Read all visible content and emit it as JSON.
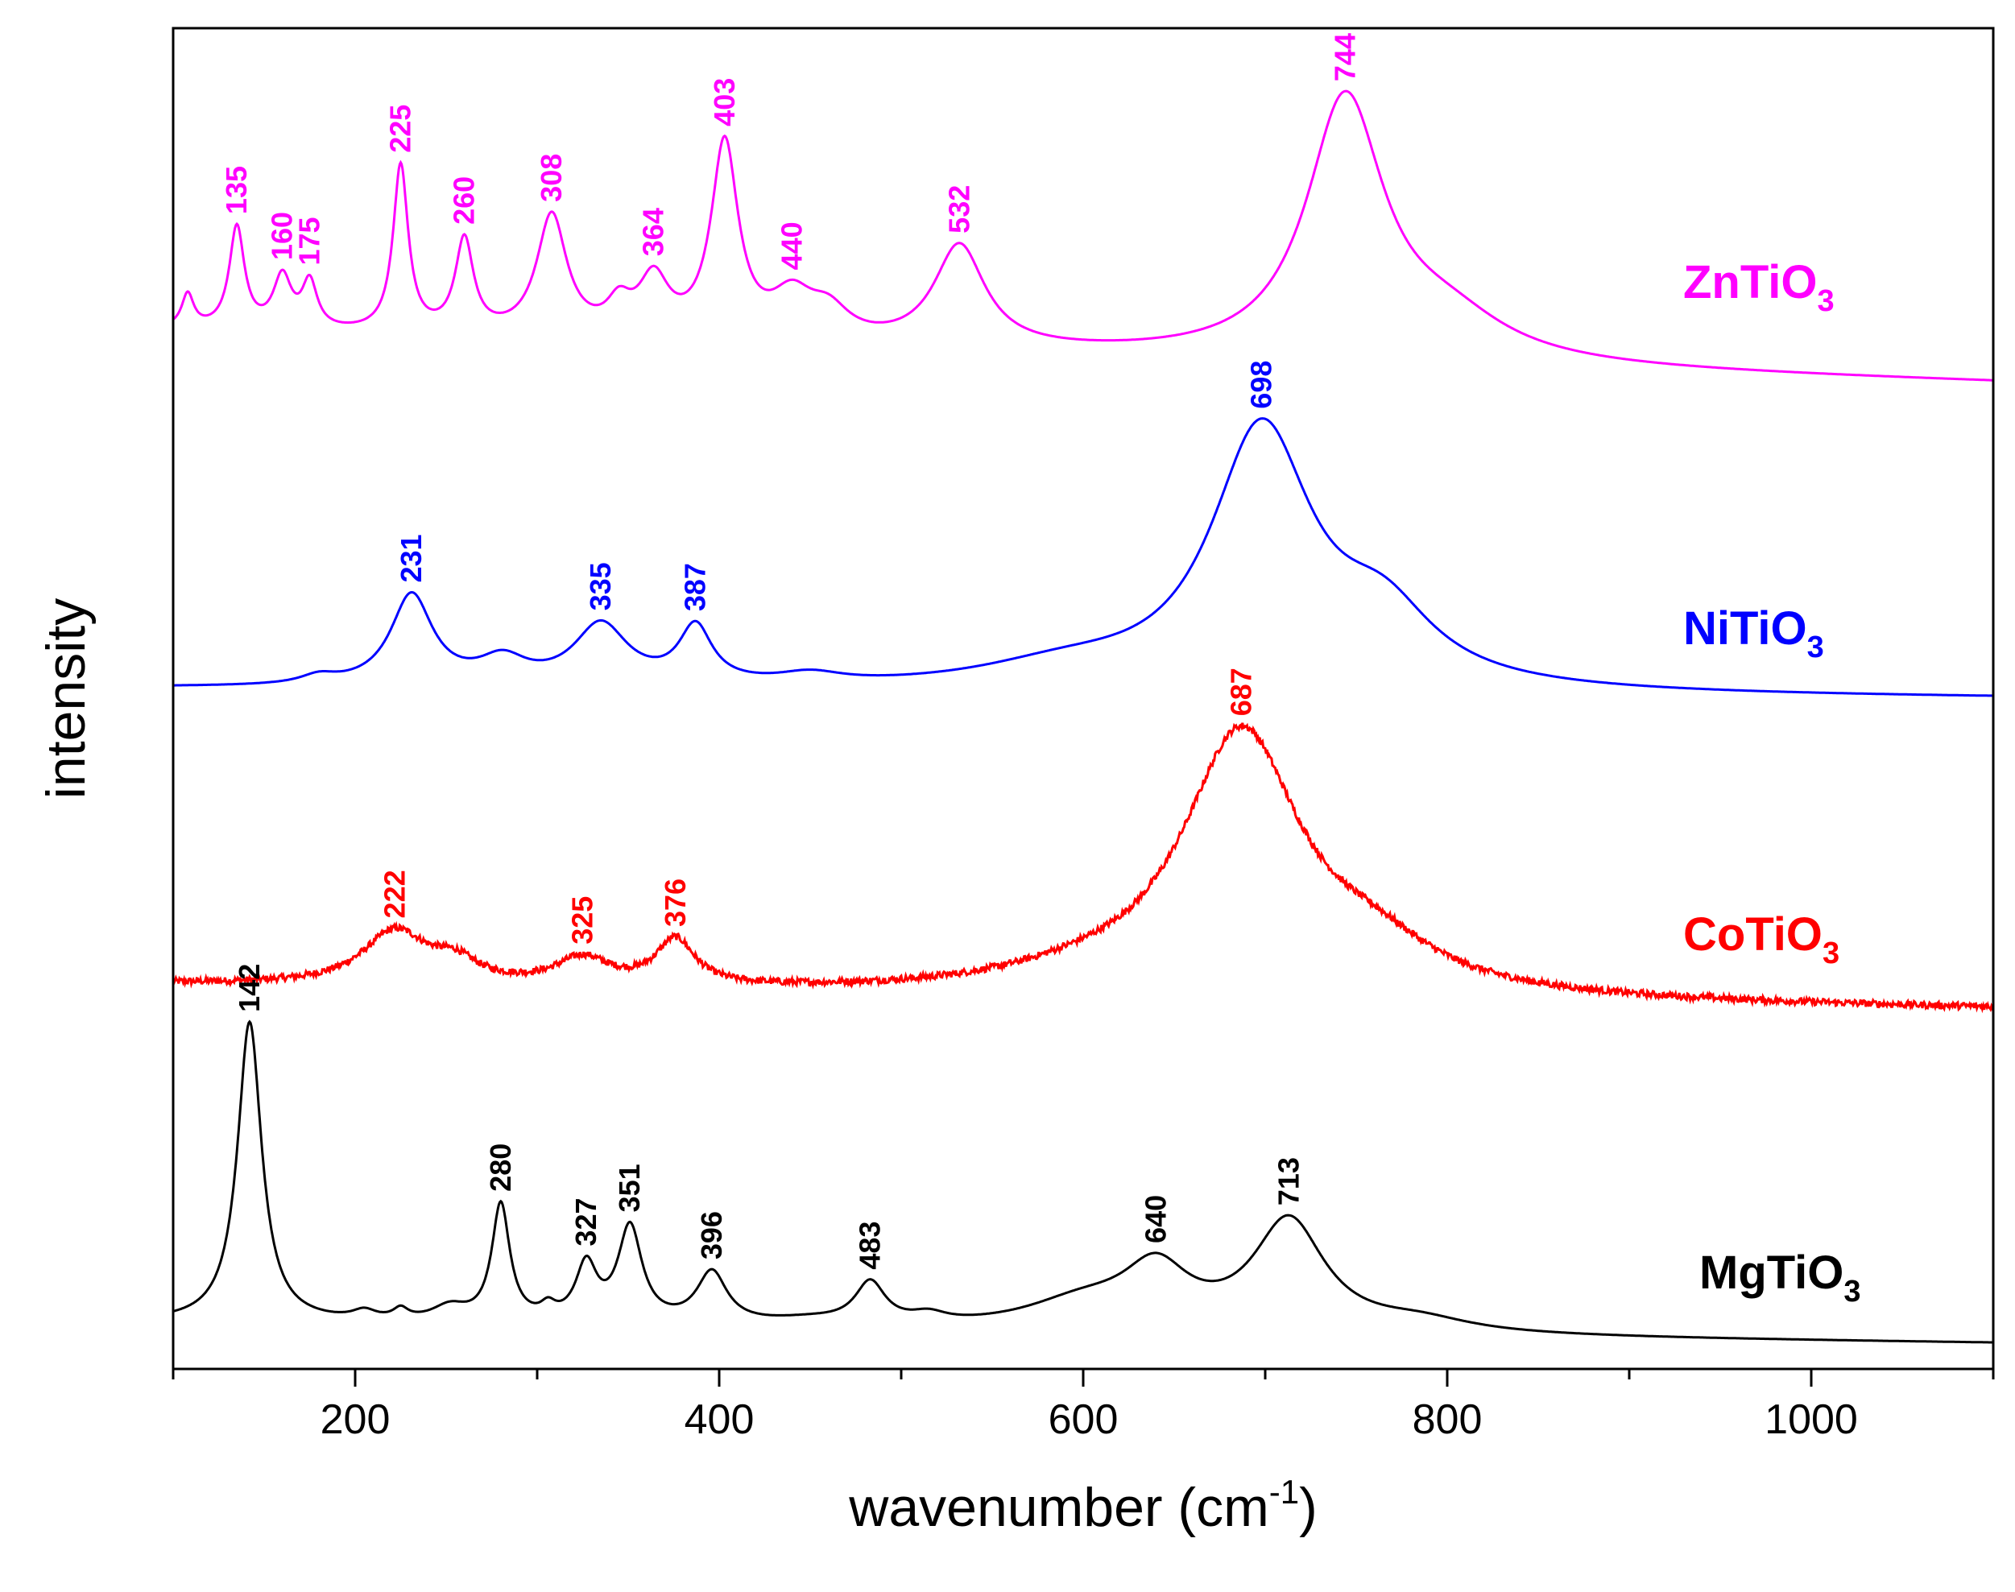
{
  "chart_data": {
    "type": "line",
    "xlabel": "wavenumber (cm",
    "xlabel_sup": "-1",
    "xlabel_close": ")",
    "ylabel": "intensity",
    "xlim": [
      100,
      1100
    ],
    "x_ticks": [
      200,
      400,
      600,
      800,
      1000
    ],
    "x_minor_ticks": [
      100,
      300,
      500,
      700,
      900,
      1100
    ],
    "y_ticks_shown": false,
    "grid": false,
    "series": [
      {
        "name": "ZnTiO3",
        "label_main": "ZnTiO",
        "label_sub": "3",
        "color": "#ff00ff",
        "noise": 0,
        "baseline_start": 0.28,
        "baseline_end": 0.0,
        "peaks": [
          {
            "x": 108,
            "amp": 0.18,
            "w": 4
          },
          {
            "x": 135,
            "amp": 0.55,
            "w": 5
          },
          {
            "x": 160,
            "amp": 0.28,
            "w": 6
          },
          {
            "x": 175,
            "amp": 0.25,
            "w": 5
          },
          {
            "x": 225,
            "amp": 0.9,
            "w": 5
          },
          {
            "x": 260,
            "amp": 0.5,
            "w": 6
          },
          {
            "x": 308,
            "amp": 0.65,
            "w": 10
          },
          {
            "x": 345,
            "amp": 0.15,
            "w": 8
          },
          {
            "x": 364,
            "amp": 0.3,
            "w": 10
          },
          {
            "x": 403,
            "amp": 1.05,
            "w": 9
          },
          {
            "x": 440,
            "amp": 0.22,
            "w": 14
          },
          {
            "x": 460,
            "amp": 0.15,
            "w": 14
          },
          {
            "x": 532,
            "amp": 0.55,
            "w": 17
          },
          {
            "x": 744,
            "amp": 1.4,
            "w": 26
          },
          {
            "x": 800,
            "amp": 0.2,
            "w": 40
          }
        ],
        "annotations": [
          {
            "x": 135,
            "label": "135"
          },
          {
            "x": 160,
            "label": "160"
          },
          {
            "x": 175,
            "label": "175"
          },
          {
            "x": 225,
            "label": "225"
          },
          {
            "x": 260,
            "label": "260"
          },
          {
            "x": 308,
            "label": "308"
          },
          {
            "x": 364,
            "label": "364"
          },
          {
            "x": 403,
            "label": "403"
          },
          {
            "x": 440,
            "label": "440"
          },
          {
            "x": 532,
            "label": "532"
          },
          {
            "x": 744,
            "label": "744"
          }
        ]
      },
      {
        "name": "NiTiO3",
        "label_main": "NiTiO",
        "label_sub": "3",
        "color": "#0000ff",
        "noise": 0,
        "baseline_start": 0.0,
        "baseline_end": -0.05,
        "peaks": [
          {
            "x": 180,
            "amp": 0.04,
            "w": 12
          },
          {
            "x": 231,
            "amp": 0.45,
            "w": 14
          },
          {
            "x": 281,
            "amp": 0.12,
            "w": 16
          },
          {
            "x": 335,
            "amp": 0.3,
            "w": 18
          },
          {
            "x": 387,
            "amp": 0.28,
            "w": 11
          },
          {
            "x": 450,
            "amp": 0.05,
            "w": 22
          },
          {
            "x": 590,
            "amp": 0.1,
            "w": 60
          },
          {
            "x": 698,
            "amp": 1.28,
            "w": 34
          },
          {
            "x": 765,
            "amp": 0.32,
            "w": 34
          }
        ],
        "annotations": [
          {
            "x": 231,
            "label": "231"
          },
          {
            "x": 335,
            "label": "335"
          },
          {
            "x": 387,
            "label": "387"
          },
          {
            "x": 698,
            "label": "698"
          }
        ]
      },
      {
        "name": "CoTiO3",
        "label_main": "CoTiO",
        "label_sub": "3",
        "color": "#ff0000",
        "noise": 0.018,
        "baseline_start": 0.08,
        "baseline_end": -0.05,
        "peaks": [
          {
            "x": 222,
            "amp": 0.28,
            "w": 22
          },
          {
            "x": 255,
            "amp": 0.1,
            "w": 15
          },
          {
            "x": 325,
            "amp": 0.14,
            "w": 18
          },
          {
            "x": 376,
            "amp": 0.24,
            "w": 13
          },
          {
            "x": 600,
            "amp": 0.06,
            "w": 55
          },
          {
            "x": 687,
            "amp": 1.38,
            "w": 40
          },
          {
            "x": 760,
            "amp": 0.18,
            "w": 40
          }
        ],
        "annotations": [
          {
            "x": 222,
            "label": "222"
          },
          {
            "x": 325,
            "label": "325"
          },
          {
            "x": 376,
            "label": "376"
          },
          {
            "x": 687,
            "label": "687"
          }
        ]
      },
      {
        "name": "MgTiO3",
        "label_main": "MgTiO",
        "label_sub": "3",
        "color": "#000000",
        "noise": 0,
        "baseline_start": 0.04,
        "baseline_end": -0.1,
        "peaks": [
          {
            "x": 142,
            "amp": 2.05,
            "w": 8
          },
          {
            "x": 205,
            "amp": 0.06,
            "w": 8
          },
          {
            "x": 225,
            "amp": 0.07,
            "w": 5
          },
          {
            "x": 252,
            "amp": 0.1,
            "w": 12
          },
          {
            "x": 280,
            "amp": 0.8,
            "w": 6
          },
          {
            "x": 306,
            "amp": 0.08,
            "w": 5
          },
          {
            "x": 327,
            "amp": 0.38,
            "w": 7
          },
          {
            "x": 351,
            "amp": 0.65,
            "w": 8
          },
          {
            "x": 396,
            "amp": 0.35,
            "w": 10
          },
          {
            "x": 450,
            "amp": 0.04,
            "w": 30
          },
          {
            "x": 483,
            "amp": 0.28,
            "w": 10
          },
          {
            "x": 515,
            "amp": 0.06,
            "w": 12
          },
          {
            "x": 600,
            "amp": 0.18,
            "w": 40
          },
          {
            "x": 640,
            "amp": 0.38,
            "w": 22
          },
          {
            "x": 713,
            "amp": 0.75,
            "w": 24
          },
          {
            "x": 785,
            "amp": 0.08,
            "w": 35
          }
        ],
        "annotations": [
          {
            "x": 142,
            "label": "142"
          },
          {
            "x": 280,
            "label": "280"
          },
          {
            "x": 327,
            "label": "327"
          },
          {
            "x": 351,
            "label": "351"
          },
          {
            "x": 396,
            "label": "396"
          },
          {
            "x": 483,
            "label": "483"
          },
          {
            "x": 640,
            "label": "640"
          },
          {
            "x": 713,
            "label": "713"
          }
        ]
      }
    ]
  }
}
